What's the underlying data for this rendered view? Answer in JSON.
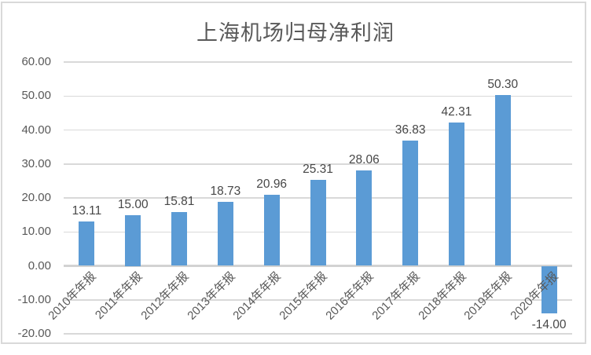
{
  "chart_data": {
    "type": "bar",
    "title": "上海机场归母净利润",
    "categories": [
      "2010年年报",
      "2011年年报",
      "2012年年报",
      "2013年年报",
      "2014年年报",
      "2015年年报",
      "2016年年报",
      "2017年年报",
      "2018年年报",
      "2019年年报",
      "2020年年报"
    ],
    "values": [
      13.11,
      15.0,
      15.81,
      18.73,
      20.96,
      25.31,
      28.06,
      36.83,
      42.31,
      50.3,
      -14.0
    ],
    "data_labels": [
      "13.11",
      "15.00",
      "15.81",
      "18.73",
      "20.96",
      "25.31",
      "28.06",
      "36.83",
      "42.31",
      "50.30",
      "-14.00"
    ],
    "xlabel": "",
    "ylabel": "",
    "ylim": [
      -20,
      60
    ],
    "ytick_step": 10,
    "ytick_labels": [
      "60.00",
      "50.00",
      "40.00",
      "30.00",
      "20.00",
      "10.00",
      "0.00",
      "-10.00",
      "-20.00"
    ],
    "grid": true,
    "legend": "none",
    "colors": {
      "bar": "#5b9bd5",
      "gridline": "#d9d9d9",
      "zero_line": "#d2d2d2",
      "title_text": "#595959",
      "axis_text": "#595959",
      "data_label_text": "#474747",
      "frame_border": "#d9d9d9",
      "background": "#ffffff"
    }
  }
}
